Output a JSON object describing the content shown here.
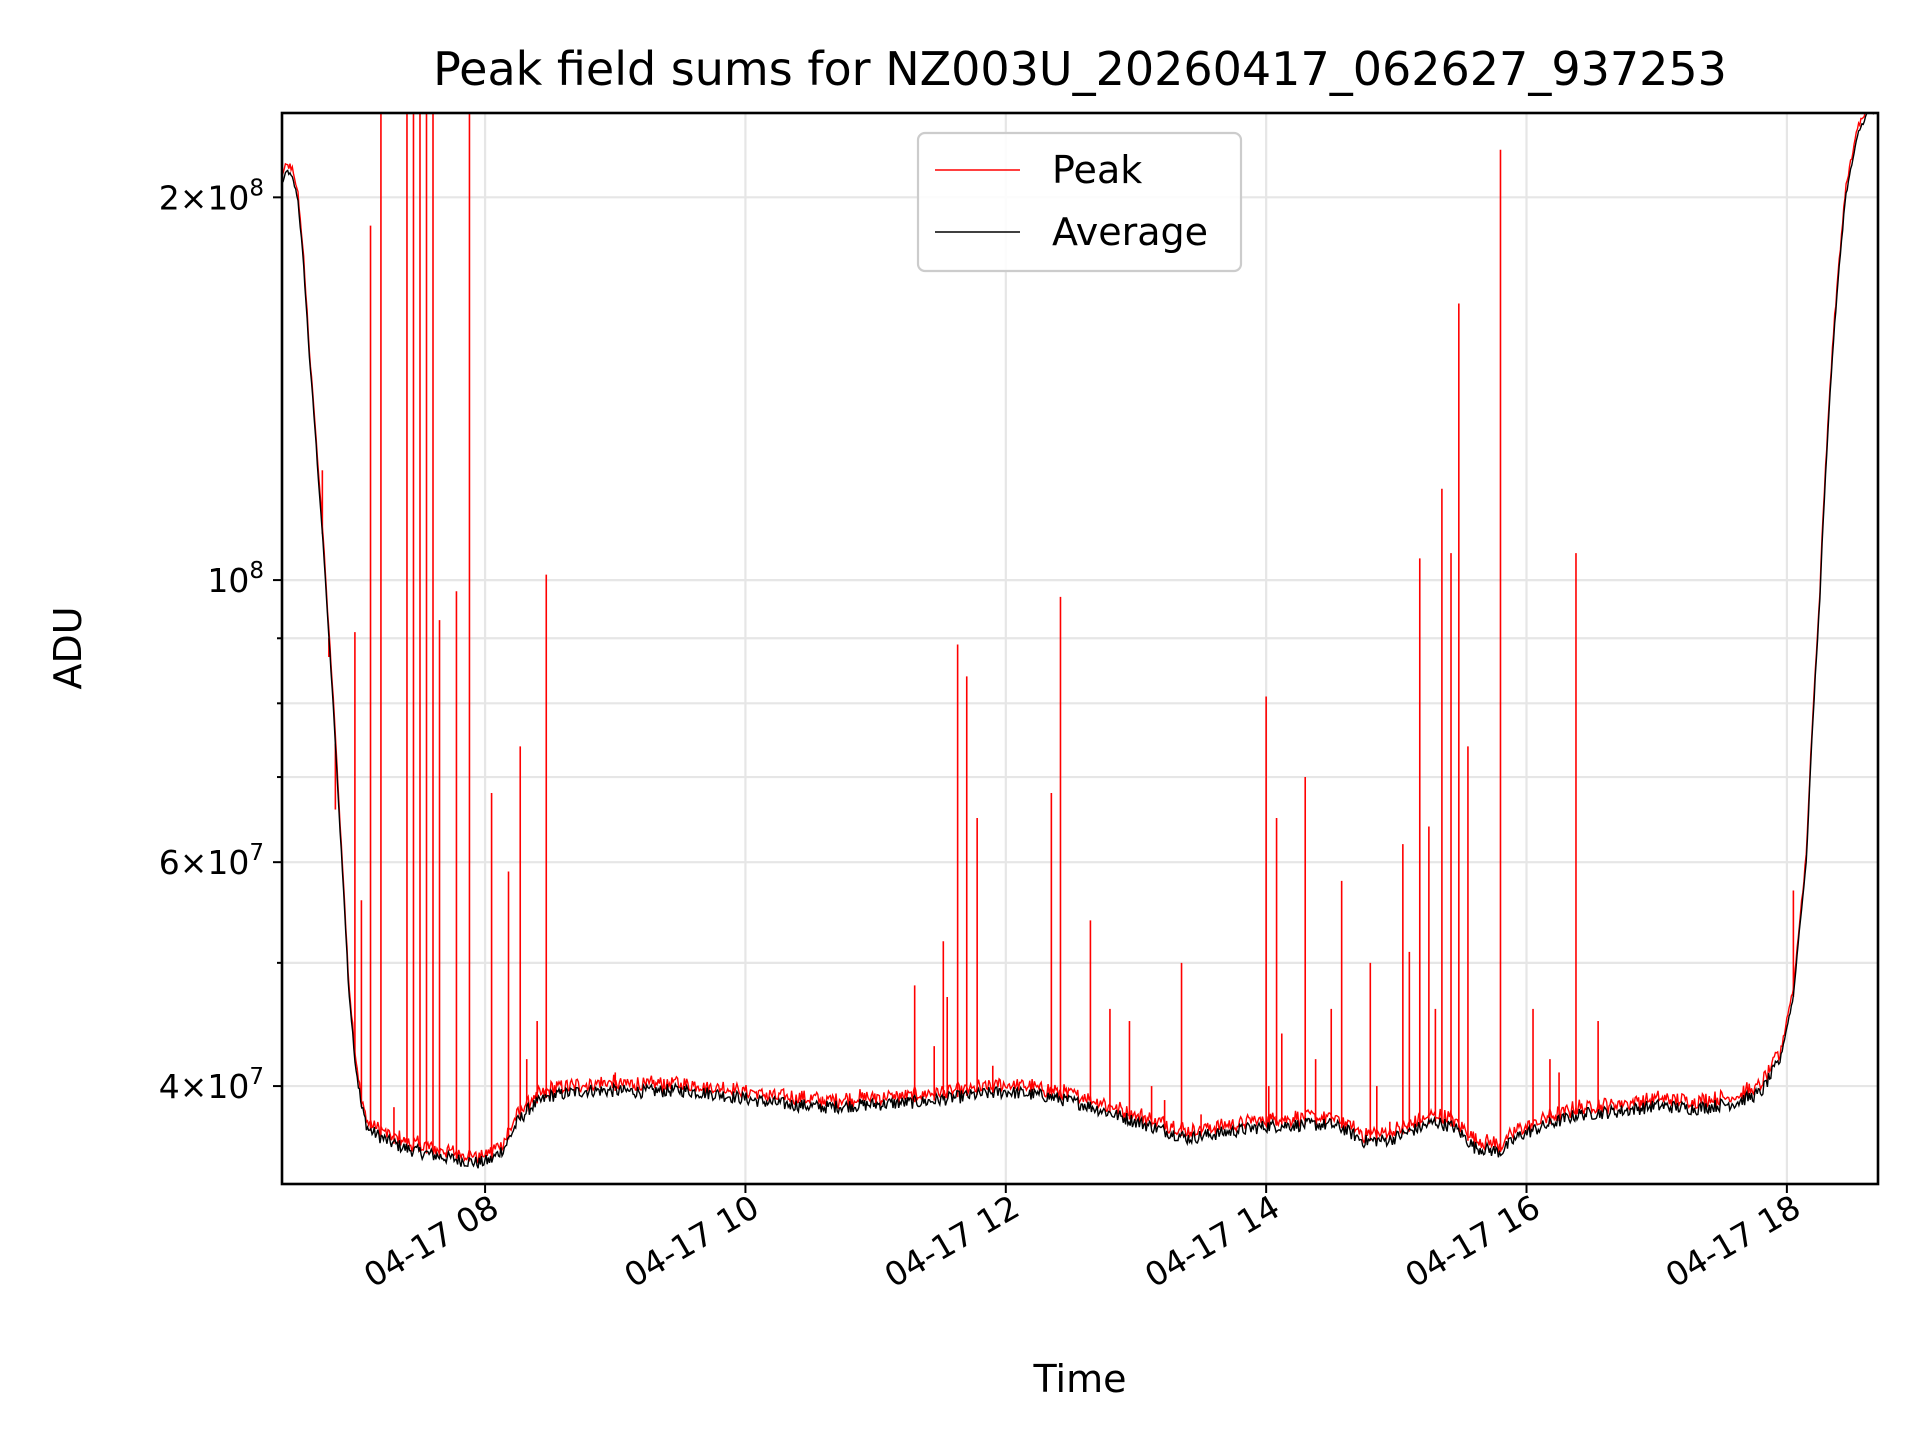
{
  "chart_data": {
    "type": "line",
    "title": "Peak field sums for NZ003U_20260417_062627_937253",
    "xlabel": "Time",
    "ylabel": "ADU",
    "y_scale": "log",
    "xlim_hours": [
      6.44,
      18.7
    ],
    "ylim": [
      33500000,
      233000000
    ],
    "grid": true,
    "legend_position": "top-center",
    "x_ticks": [
      {
        "hour": 8,
        "label": "04-17 08"
      },
      {
        "hour": 10,
        "label": "04-17 10"
      },
      {
        "hour": 12,
        "label": "04-17 12"
      },
      {
        "hour": 14,
        "label": "04-17 14"
      },
      {
        "hour": 16,
        "label": "04-17 16"
      },
      {
        "hour": 18,
        "label": "04-17 18"
      }
    ],
    "y_major_ticks": [
      {
        "value": 40000000,
        "mantissa": "4",
        "base": "10",
        "exp": "7"
      },
      {
        "value": 60000000,
        "mantissa": "6",
        "base": "10",
        "exp": "7"
      },
      {
        "value": 100000000,
        "mantissa": "",
        "base": "10",
        "exp": "8"
      },
      {
        "value": 200000000,
        "mantissa": "2",
        "base": "10",
        "exp": "8"
      }
    ],
    "y_minor_ticks": [
      50000000,
      70000000,
      80000000,
      90000000
    ],
    "series": [
      {
        "name": "Peak",
        "color": "#ff0000",
        "spikes": [
          [
            6.75,
            122000000
          ],
          [
            6.8,
            87000000
          ],
          [
            6.85,
            66000000
          ],
          [
            7.0,
            91000000
          ],
          [
            7.05,
            56000000
          ],
          [
            7.12,
            190000000
          ],
          [
            7.2,
            233000000
          ],
          [
            7.3,
            38500000
          ],
          [
            7.4,
            233000000
          ],
          [
            7.45,
            233000000
          ],
          [
            7.5,
            233000000
          ],
          [
            7.55,
            233000000
          ],
          [
            7.6,
            233000000
          ],
          [
            7.65,
            93000000
          ],
          [
            7.78,
            98000000
          ],
          [
            7.88,
            233000000
          ],
          [
            8.05,
            68000000
          ],
          [
            8.18,
            59000000
          ],
          [
            8.27,
            74000000
          ],
          [
            8.32,
            42000000
          ],
          [
            8.4,
            45000000
          ],
          [
            8.47,
            101000000
          ],
          [
            9.0,
            41000000
          ],
          [
            11.3,
            48000000
          ],
          [
            11.45,
            43000000
          ],
          [
            11.52,
            52000000
          ],
          [
            11.55,
            47000000
          ],
          [
            11.63,
            89000000
          ],
          [
            11.7,
            84000000
          ],
          [
            11.78,
            65000000
          ],
          [
            11.9,
            41500000
          ],
          [
            12.35,
            68000000
          ],
          [
            12.42,
            97000000
          ],
          [
            12.65,
            54000000
          ],
          [
            12.8,
            46000000
          ],
          [
            12.95,
            45000000
          ],
          [
            13.12,
            40000000
          ],
          [
            13.22,
            39000000
          ],
          [
            13.35,
            50000000
          ],
          [
            13.5,
            38000000
          ],
          [
            14.0,
            81000000
          ],
          [
            14.02,
            40000000
          ],
          [
            14.08,
            65000000
          ],
          [
            14.12,
            44000000
          ],
          [
            14.3,
            70000000
          ],
          [
            14.38,
            42000000
          ],
          [
            14.5,
            46000000
          ],
          [
            14.58,
            58000000
          ],
          [
            14.8,
            50000000
          ],
          [
            14.85,
            40000000
          ],
          [
            14.95,
            37500000
          ],
          [
            15.05,
            62000000
          ],
          [
            15.1,
            51000000
          ],
          [
            15.18,
            104000000
          ],
          [
            15.25,
            64000000
          ],
          [
            15.3,
            46000000
          ],
          [
            15.35,
            118000000
          ],
          [
            15.42,
            105000000
          ],
          [
            15.48,
            165000000
          ],
          [
            15.55,
            74000000
          ],
          [
            15.8,
            218000000
          ],
          [
            16.05,
            46000000
          ],
          [
            16.18,
            42000000
          ],
          [
            16.25,
            41000000
          ],
          [
            16.38,
            105000000
          ],
          [
            16.55,
            45000000
          ],
          [
            18.05,
            57000000
          ]
        ]
      },
      {
        "name": "Average",
        "color": "#000000",
        "curve": [
          [
            6.44,
            205000000
          ],
          [
            6.48,
            210000000
          ],
          [
            6.52,
            207000000
          ],
          [
            6.56,
            200000000
          ],
          [
            6.6,
            180000000
          ],
          [
            6.65,
            150000000
          ],
          [
            6.72,
            120000000
          ],
          [
            6.8,
            90000000
          ],
          [
            6.88,
            65000000
          ],
          [
            6.95,
            48000000
          ],
          [
            7.0,
            42000000
          ],
          [
            7.05,
            38500000
          ],
          [
            7.1,
            37000000
          ],
          [
            7.25,
            36200000
          ],
          [
            7.4,
            35700000
          ],
          [
            7.6,
            35300000
          ],
          [
            7.8,
            35000000
          ],
          [
            7.95,
            34800000
          ],
          [
            8.05,
            35000000
          ],
          [
            8.15,
            35800000
          ],
          [
            8.25,
            37500000
          ],
          [
            8.35,
            38500000
          ],
          [
            8.5,
            39300000
          ],
          [
            8.8,
            39700000
          ],
          [
            9.2,
            39600000
          ],
          [
            9.5,
            39700000
          ],
          [
            9.8,
            39400000
          ],
          [
            10.2,
            38800000
          ],
          [
            10.6,
            38500000
          ],
          [
            11.0,
            38700000
          ],
          [
            11.4,
            38900000
          ],
          [
            11.7,
            39300000
          ],
          [
            12.0,
            39600000
          ],
          [
            12.3,
            39300000
          ],
          [
            12.6,
            38700000
          ],
          [
            13.0,
            37500000
          ],
          [
            13.4,
            36400000
          ],
          [
            13.7,
            36800000
          ],
          [
            14.0,
            37200000
          ],
          [
            14.3,
            37300000
          ],
          [
            14.5,
            37300000
          ],
          [
            14.6,
            37000000
          ],
          [
            14.75,
            36200000
          ],
          [
            14.95,
            36300000
          ],
          [
            15.15,
            37000000
          ],
          [
            15.3,
            37500000
          ],
          [
            15.45,
            37100000
          ],
          [
            15.6,
            35800000
          ],
          [
            15.8,
            35500000
          ],
          [
            15.95,
            36600000
          ],
          [
            16.2,
            37400000
          ],
          [
            16.4,
            38000000
          ],
          [
            16.7,
            38200000
          ],
          [
            17.0,
            38600000
          ],
          [
            17.3,
            38400000
          ],
          [
            17.6,
            38800000
          ],
          [
            17.8,
            39500000
          ],
          [
            17.95,
            42000000
          ],
          [
            18.05,
            47000000
          ],
          [
            18.15,
            60000000
          ],
          [
            18.25,
            95000000
          ],
          [
            18.35,
            150000000
          ],
          [
            18.45,
            200000000
          ],
          [
            18.55,
            225000000
          ],
          [
            18.62,
            233000000
          ],
          [
            18.7,
            233000000
          ]
        ]
      }
    ]
  }
}
